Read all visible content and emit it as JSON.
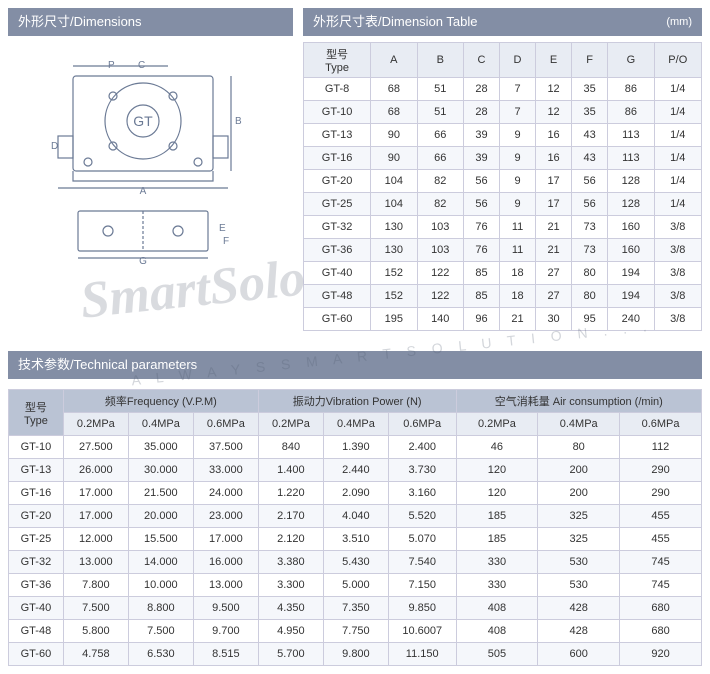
{
  "watermark": {
    "main": "SmartSolo",
    "sub": "A L W A Y S   S M A R T   S O L U T I O N . . ."
  },
  "diagram": {
    "label": "GT",
    "dims": [
      "P",
      "C",
      "A",
      "B",
      "D",
      "E",
      "F",
      "G"
    ]
  },
  "dimTable": {
    "title": "外形尺寸/Dimensions",
    "title2": "外形尺寸表/Dimension Table",
    "unit": "(mm)",
    "headers": [
      "型号\nType",
      "A",
      "B",
      "C",
      "D",
      "E",
      "F",
      "G",
      "P/O"
    ],
    "rows": [
      [
        "GT-8",
        "68",
        "51",
        "28",
        "7",
        "12",
        "35",
        "86",
        "1/4"
      ],
      [
        "GT-10",
        "68",
        "51",
        "28",
        "7",
        "12",
        "35",
        "86",
        "1/4"
      ],
      [
        "GT-13",
        "90",
        "66",
        "39",
        "9",
        "16",
        "43",
        "113",
        "1/4"
      ],
      [
        "GT-16",
        "90",
        "66",
        "39",
        "9",
        "16",
        "43",
        "113",
        "1/4"
      ],
      [
        "GT-20",
        "104",
        "82",
        "56",
        "9",
        "17",
        "56",
        "128",
        "1/4"
      ],
      [
        "GT-25",
        "104",
        "82",
        "56",
        "9",
        "17",
        "56",
        "128",
        "1/4"
      ],
      [
        "GT-32",
        "130",
        "103",
        "76",
        "11",
        "21",
        "73",
        "160",
        "3/8"
      ],
      [
        "GT-36",
        "130",
        "103",
        "76",
        "11",
        "21",
        "73",
        "160",
        "3/8"
      ],
      [
        "GT-40",
        "152",
        "122",
        "85",
        "18",
        "27",
        "80",
        "194",
        "3/8"
      ],
      [
        "GT-48",
        "152",
        "122",
        "85",
        "18",
        "27",
        "80",
        "194",
        "3/8"
      ],
      [
        "GT-60",
        "195",
        "140",
        "96",
        "21",
        "30",
        "95",
        "240",
        "3/8"
      ]
    ]
  },
  "techTable": {
    "title": "技术参数/Technical parameters",
    "groupHeaders": [
      "型号\nType",
      "频率Frequency (V.P.M)",
      "振动力Vibration Power (N)",
      "空气消耗量 Air consumption (/min)"
    ],
    "subHeaders": [
      "0.2MPa",
      "0.4MPa",
      "0.6MPa",
      "0.2MPa",
      "0.4MPa",
      "0.6MPa",
      "0.2MPa",
      "0.4MPa",
      "0.6MPa"
    ],
    "rows": [
      [
        "GT-10",
        "27.500",
        "35.000",
        "37.500",
        "840",
        "1.390",
        "2.400",
        "46",
        "80",
        "112"
      ],
      [
        "GT-13",
        "26.000",
        "30.000",
        "33.000",
        "1.400",
        "2.440",
        "3.730",
        "120",
        "200",
        "290"
      ],
      [
        "GT-16",
        "17.000",
        "21.500",
        "24.000",
        "1.220",
        "2.090",
        "3.160",
        "120",
        "200",
        "290"
      ],
      [
        "GT-20",
        "17.000",
        "20.000",
        "23.000",
        "2.170",
        "4.040",
        "5.520",
        "185",
        "325",
        "455"
      ],
      [
        "GT-25",
        "12.000",
        "15.500",
        "17.000",
        "2.120",
        "3.510",
        "5.070",
        "185",
        "325",
        "455"
      ],
      [
        "GT-32",
        "13.000",
        "14.000",
        "16.000",
        "3.380",
        "5.430",
        "7.540",
        "330",
        "530",
        "745"
      ],
      [
        "GT-36",
        "7.800",
        "10.000",
        "13.000",
        "3.300",
        "5.000",
        "7.150",
        "330",
        "530",
        "745"
      ],
      [
        "GT-40",
        "7.500",
        "8.800",
        "9.500",
        "4.350",
        "7.350",
        "9.850",
        "408",
        "428",
        "680"
      ],
      [
        "GT-48",
        "5.800",
        "7.500",
        "9.700",
        "4.950",
        "7.750",
        "10.6007",
        "408",
        "428",
        "680"
      ],
      [
        "GT-60",
        "4.758",
        "6.530",
        "8.515",
        "5.700",
        "9.800",
        "11.150",
        "505",
        "600",
        "920"
      ]
    ]
  },
  "colors": {
    "hdr": "#838ea5",
    "line": "#6b7a95"
  }
}
